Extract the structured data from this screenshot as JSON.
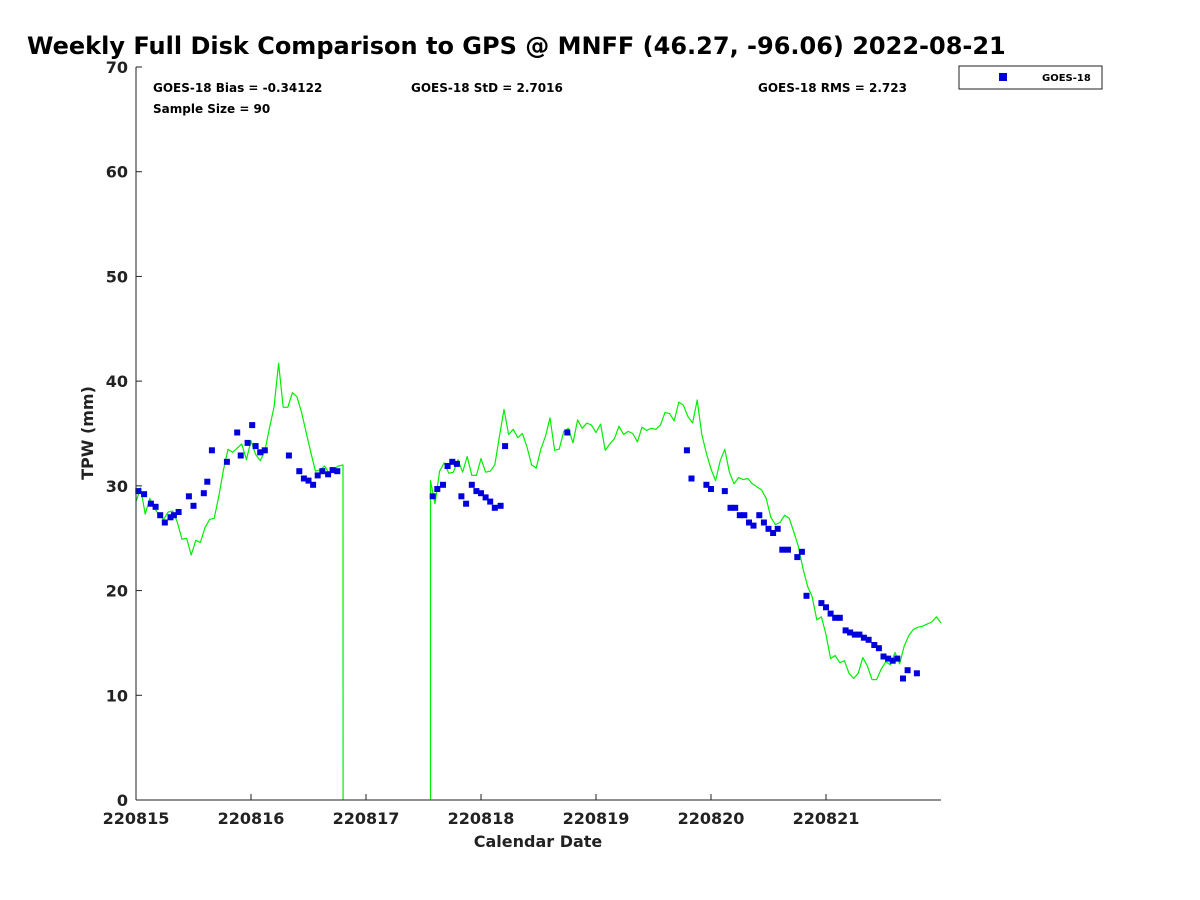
{
  "chart_data": {
    "type": "scatter",
    "title": "Weekly Full Disk Comparison to GPS @ MNFF (46.27, -96.06) 2022-08-21",
    "xlabel": "Calendar Date",
    "ylabel": "TPW (mm)",
    "xlim": [
      0,
      7
    ],
    "ylim": [
      0,
      70
    ],
    "grid": false,
    "legend_position": "top-right-outside",
    "x_ticks": [
      0,
      1,
      2,
      3,
      4,
      5,
      6
    ],
    "x_tick_labels": [
      "220815",
      "220816",
      "220817",
      "220818",
      "220819",
      "220820",
      "220821"
    ],
    "y_ticks": [
      0,
      10,
      20,
      30,
      40,
      50,
      60,
      70
    ],
    "y_tick_labels": [
      "0",
      "10",
      "20",
      "30",
      "40",
      "50",
      "60",
      "70"
    ],
    "stats": {
      "bias": "GOES-18 Bias = -0.34122",
      "std": "GOES-18 StD = 2.7016",
      "rms": "GOES-18 RMS = 2.723",
      "sample": "Sample Size = 90"
    },
    "series": [
      {
        "name": "GOES-18",
        "kind": "markers",
        "color": "#0000dd",
        "x": [
          0.02,
          0.07,
          0.13,
          0.17,
          0.21,
          0.25,
          0.3,
          0.33,
          0.37,
          0.46,
          0.5,
          0.59,
          0.62,
          0.66,
          0.79,
          0.88,
          0.91,
          0.97,
          1.01,
          1.04,
          1.08,
          1.12,
          1.33,
          1.42,
          1.46,
          1.5,
          1.54,
          1.58,
          1.62,
          1.67,
          1.71,
          1.75,
          2.58,
          2.62,
          2.67,
          2.71,
          2.75,
          2.79,
          2.83,
          2.87,
          2.92,
          2.96,
          3.0,
          3.04,
          3.08,
          3.12,
          3.17,
          3.21,
          3.75,
          4.79,
          4.83,
          4.96,
          5.0,
          5.12,
          5.17,
          5.21,
          5.25,
          5.29,
          5.33,
          5.37,
          5.42,
          5.46,
          5.5,
          5.54,
          5.58,
          5.62,
          5.67,
          5.75,
          5.79,
          5.83,
          5.96,
          6.0,
          6.04,
          6.08,
          6.12,
          6.17,
          6.21,
          6.25,
          6.29,
          6.33,
          6.37,
          6.42,
          6.46,
          6.5,
          6.54,
          6.58,
          6.62,
          6.67,
          6.71,
          6.79
        ],
        "y": [
          29.5,
          29.2,
          28.3,
          28.0,
          27.2,
          26.5,
          27.0,
          27.2,
          27.5,
          29.0,
          28.1,
          29.3,
          30.4,
          33.4,
          32.3,
          35.1,
          32.9,
          34.1,
          35.8,
          33.8,
          33.2,
          33.4,
          32.9,
          31.4,
          30.7,
          30.5,
          30.1,
          31.0,
          31.4,
          31.1,
          31.5,
          31.4,
          29.0,
          29.7,
          30.1,
          31.9,
          32.3,
          32.1,
          29.0,
          28.3,
          30.1,
          29.5,
          29.3,
          28.9,
          28.5,
          27.9,
          28.1,
          33.8,
          35.1,
          33.4,
          30.7,
          30.1,
          29.7,
          29.5,
          27.9,
          27.9,
          27.2,
          27.2,
          26.5,
          26.2,
          27.2,
          26.5,
          25.9,
          25.5,
          25.9,
          23.9,
          23.9,
          23.2,
          23.7,
          19.5,
          18.8,
          18.4,
          17.8,
          17.4,
          17.4,
          16.2,
          16.0,
          15.8,
          15.8,
          15.5,
          15.3,
          14.8,
          14.5,
          13.7,
          13.5,
          13.3,
          13.5,
          11.6,
          12.4,
          12.1
        ]
      },
      {
        "name": "GPS",
        "kind": "line",
        "color": "#00ee00",
        "x": [
          0.0,
          0.04,
          0.08,
          0.12,
          0.16,
          0.2,
          0.24,
          0.28,
          0.32,
          0.36,
          0.4,
          0.44,
          0.48,
          0.52,
          0.56,
          0.6,
          0.64,
          0.68,
          0.72,
          0.76,
          0.8,
          0.84,
          0.88,
          0.92,
          0.96,
          1.0,
          1.04,
          1.08,
          1.12,
          1.16,
          1.2,
          1.24,
          1.28,
          1.32,
          1.36,
          1.4,
          1.44,
          1.48,
          1.52,
          1.56,
          1.6,
          1.64,
          1.68,
          1.72,
          1.76,
          1.8,
          1.8005,
          null,
          2.5605,
          2.561,
          2.6,
          2.64,
          2.68,
          2.72,
          2.76,
          2.8,
          2.84,
          2.88,
          2.92,
          2.96,
          3.0,
          3.04,
          3.08,
          3.12,
          3.16,
          3.2,
          3.24,
          3.28,
          3.32,
          3.36,
          3.4,
          3.44,
          3.48,
          3.52,
          3.56,
          3.6,
          3.64,
          3.68,
          3.72,
          3.76,
          3.8,
          3.84,
          3.88,
          3.92,
          3.96,
          4.0,
          4.04,
          4.08,
          4.12,
          4.16,
          4.2,
          4.24,
          4.28,
          4.32,
          4.36,
          4.4,
          4.44,
          4.48,
          4.52,
          4.56,
          4.6,
          4.64,
          4.68,
          4.72,
          4.76,
          4.8,
          4.84,
          4.88,
          4.92,
          4.96,
          5.0,
          5.04,
          5.08,
          5.12,
          5.16,
          5.2,
          5.24,
          5.28,
          5.32,
          5.36,
          5.4,
          5.44,
          5.48,
          5.52,
          5.56,
          5.6,
          5.64,
          5.68,
          5.72,
          5.76,
          5.8,
          5.84,
          5.88,
          5.92,
          5.96,
          6.0,
          6.04,
          6.08,
          6.12,
          6.16,
          6.2,
          6.24,
          6.28,
          6.32,
          6.36,
          6.4,
          6.44,
          6.48,
          6.52,
          6.56,
          6.6,
          6.64,
          6.68,
          6.72,
          6.76,
          6.8,
          6.84,
          6.88,
          6.92,
          6.96,
          7.0
        ],
        "y": [
          28.5,
          29.8,
          27.3,
          28.8,
          27.9,
          27.2,
          26.8,
          27.5,
          27.6,
          26.5,
          24.9,
          25.0,
          23.4,
          24.8,
          24.6,
          26.0,
          26.8,
          26.9,
          29.0,
          31.5,
          33.5,
          33.2,
          33.6,
          34.0,
          32.5,
          34.3,
          33.0,
          32.4,
          33.3,
          35.5,
          37.5,
          41.7,
          37.5,
          37.5,
          38.9,
          38.5,
          37.0,
          35.1,
          33.2,
          31.4,
          31.5,
          31.9,
          31.2,
          31.6,
          31.9,
          32.0,
          0,
          null,
          0,
          30.5,
          28.3,
          31.4,
          32.2,
          31.2,
          31.3,
          32.5,
          31.3,
          32.8,
          31.0,
          31.0,
          32.6,
          31.3,
          31.4,
          32.0,
          34.7,
          37.3,
          34.9,
          35.4,
          34.6,
          35.0,
          33.7,
          32.0,
          31.7,
          33.5,
          34.7,
          36.5,
          33.4,
          33.5,
          35.2,
          35.5,
          34.1,
          36.3,
          35.5,
          36.0,
          35.8,
          35.1,
          35.9,
          33.4,
          34.0,
          34.5,
          35.7,
          34.9,
          35.2,
          35.0,
          34.2,
          35.6,
          35.3,
          35.5,
          35.4,
          35.8,
          37.0,
          36.9,
          36.2,
          38.0,
          37.7,
          36.6,
          36.0,
          38.2,
          34.9,
          33.1,
          31.6,
          30.5,
          32.4,
          33.5,
          31.3,
          30.2,
          30.8,
          30.6,
          30.7,
          30.2,
          29.9,
          29.6,
          28.8,
          27.0,
          26.3,
          26.5,
          27.2,
          26.9,
          25.6,
          24.2,
          22.1,
          20.4,
          19.4,
          17.2,
          17.5,
          15.8,
          13.5,
          13.8,
          13.1,
          13.3,
          12.1,
          11.6,
          12.1,
          13.6,
          12.8,
          11.5,
          11.5,
          12.5,
          13.2,
          12.9,
          14.1,
          13.0,
          14.7,
          15.7,
          16.3,
          16.5,
          16.6,
          16.8,
          17.0,
          17.5,
          16.9
        ]
      }
    ]
  }
}
